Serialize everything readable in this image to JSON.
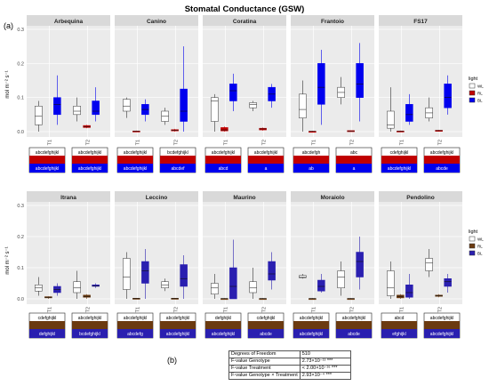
{
  "title": "Stomatal Conductance (GSW)",
  "panel_a_label": "(a)",
  "panel_b_label": "(b)",
  "ylabel": "mol m⁻² s⁻¹",
  "legend": {
    "title": "light",
    "entries": [
      "WL",
      "RL",
      "BL"
    ]
  },
  "colors": {
    "WL": "#ffffff",
    "RL": "#c00000",
    "BL": "#0000ee",
    "panel_bg": "#ebebeb",
    "strip_bg": "#d9d9d9"
  },
  "stats_table": [
    {
      "label": "Degrees of Freedom",
      "value": "510"
    },
    {
      "label": "F-value Genotype",
      "value": "2.73×10⁻¹³ ***"
    },
    {
      "label": "F-value Treatment",
      "value": "< 2.00×10⁻¹⁶ ***"
    },
    {
      "label": "F-value Genotype × Treatment",
      "value": "2.93×10⁻⁴ ***"
    }
  ],
  "chart_data": {
    "type": "box",
    "ylim": [
      0,
      0.3
    ],
    "yticks": [
      0.0,
      0.1,
      0.2,
      0.3
    ],
    "x_categories": [
      "T1",
      "T2"
    ],
    "grid": true,
    "legend_position": "right",
    "panels": [
      {
        "genotype": "Arbequina",
        "boxes": {
          "T1": {
            "WL": [
              0.0,
              0.02,
              0.045,
              0.075,
              0.09
            ],
            "BL": [
              0.02,
              0.05,
              0.08,
              0.1,
              0.165
            ]
          },
          "T2": {
            "WL": [
              0.03,
              0.05,
              0.06,
              0.075,
              0.1
            ],
            "RL": [
              0.01,
              0.012,
              0.015,
              0.018,
              0.02
            ],
            "BL": [
              0.03,
              0.05,
              0.06,
              0.09,
              0.13
            ]
          }
        },
        "letters": {
          "T1": [
            "abcdefghijkl",
            "abcdefghijkl"
          ],
          "T2": [
            "abcdefghijkl",
            "abcdefghijkl"
          ]
        }
      },
      {
        "genotype": "Canino",
        "boxes": {
          "T1": {
            "WL": [
              0.04,
              0.06,
              0.075,
              0.095,
              0.1
            ],
            "RL": [
              0.0,
              0.0,
              0.001,
              0.002,
              0.003
            ],
            "BL": [
              0.03,
              0.05,
              0.065,
              0.08,
              0.095
            ]
          },
          "T2": {
            "WL": [
              0.02,
              0.03,
              0.045,
              0.06,
              0.07
            ],
            "RL": [
              0.0,
              0.002,
              0.004,
              0.006,
              0.008
            ],
            "BL": [
              0.0,
              0.03,
              0.06,
              0.125,
              0.25
            ]
          }
        },
        "letters": {
          "T1": [
            "abcdefghijkl",
            "abcdefghijkl"
          ],
          "T2": [
            "bcdefghijkl",
            "abcdef"
          ]
        }
      },
      {
        "genotype": "Coratina",
        "boxes": {
          "T1": {
            "WL": [
              0.0,
              0.03,
              0.09,
              0.1,
              0.11
            ],
            "RL": [
              0.0,
              0.002,
              0.005,
              0.012,
              0.015
            ],
            "BL": [
              0.06,
              0.09,
              0.12,
              0.14,
              0.17
            ]
          },
          "T2": {
            "WL": [
              0.06,
              0.07,
              0.08,
              0.085,
              0.09
            ],
            "RL": [
              0.003,
              0.005,
              0.008,
              0.01,
              0.012
            ],
            "BL": [
              0.07,
              0.09,
              0.11,
              0.13,
              0.14
            ]
          }
        },
        "letters": {
          "T1": [
            "abcdefghijkl",
            "abcd"
          ],
          "T2": [
            "abcdefghijkl",
            "a"
          ]
        }
      },
      {
        "genotype": "Frantoio",
        "boxes": {
          "T1": {
            "WL": [
              0.0,
              0.04,
              0.065,
              0.11,
              0.15
            ],
            "RL": [
              0.0,
              0.0,
              0.001,
              0.001,
              0.002
            ],
            "BL": [
              0.02,
              0.08,
              0.13,
              0.2,
              0.24
            ]
          },
          "T2": {
            "WL": [
              0.08,
              0.1,
              0.115,
              0.13,
              0.16
            ],
            "RL": [
              0.0,
              0.001,
              0.002,
              0.003,
              0.003
            ],
            "BL": [
              0.03,
              0.1,
              0.14,
              0.2,
              0.26
            ]
          }
        },
        "letters": {
          "T1": [
            "abcdefgh",
            "ab"
          ],
          "T2": [
            "abc",
            "a"
          ]
        }
      },
      {
        "genotype": "FS17",
        "boxes": {
          "T1": {
            "WL": [
              0.0,
              0.01,
              0.02,
              0.06,
              0.13
            ],
            "RL": [
              0.0,
              0.0,
              0.001,
              0.002,
              0.003
            ],
            "BL": [
              0.02,
              0.03,
              0.05,
              0.08,
              0.11
            ]
          },
          "T2": {
            "WL": [
              0.03,
              0.04,
              0.055,
              0.07,
              0.1
            ],
            "RL": [
              0.0,
              0.002,
              0.003,
              0.004,
              0.005
            ],
            "BL": [
              0.05,
              0.07,
              0.1,
              0.14,
              0.165
            ]
          }
        },
        "letters": {
          "T1": [
            "cdefghijkl",
            "abcdefghijkl"
          ],
          "T2": [
            "abcdefghijkl",
            "abcde"
          ]
        }
      },
      {
        "genotype": "Itrana",
        "boxes": {
          "T1": {
            "WL": [
              0.01,
              0.025,
              0.035,
              0.045,
              0.07
            ],
            "RL": [
              0.0,
              0.003,
              0.005,
              0.007,
              0.008
            ],
            "BL": [
              0.01,
              0.02,
              0.03,
              0.04,
              0.05
            ]
          },
          "T2": {
            "WL": [
              0.0,
              0.02,
              0.035,
              0.055,
              0.09
            ],
            "RL": [
              0.0,
              0.005,
              0.008,
              0.012,
              0.015
            ],
            "BL": [
              0.035,
              0.04,
              0.042,
              0.045,
              0.05
            ]
          }
        },
        "letters": {
          "T1": [
            "cdefghijkl",
            "defghijkl"
          ],
          "T2": [
            "abcdefghijkl",
            "bcdefghijkl"
          ]
        }
      },
      {
        "genotype": "Leccino",
        "boxes": {
          "T1": {
            "WL": [
              0.0,
              0.03,
              0.07,
              0.13,
              0.15
            ],
            "RL": [
              0.0,
              0.0,
              0.001,
              0.002,
              0.003
            ],
            "BL": [
              0.0,
              0.05,
              0.09,
              0.12,
              0.16
            ]
          },
          "T2": {
            "WL": [
              0.025,
              0.035,
              0.045,
              0.055,
              0.065
            ],
            "RL": [
              0.0,
              0.0,
              0.001,
              0.002,
              0.003
            ],
            "BL": [
              0.0,
              0.04,
              0.065,
              0.11,
              0.14
            ]
          }
        },
        "letters": {
          "T1": [
            "abcdefghijkl",
            "abcdefg"
          ],
          "T2": [
            "abcdefghijkl",
            "abcdefghijkl"
          ]
        }
      },
      {
        "genotype": "Maurino",
        "boxes": {
          "T1": {
            "WL": [
              0.0,
              0.015,
              0.035,
              0.05,
              0.08
            ],
            "RL": [
              0.0,
              0.0,
              0.001,
              0.001,
              0.002
            ],
            "BL": [
              0.0,
              0.0,
              0.04,
              0.1,
              0.19
            ]
          },
          "T2": {
            "WL": [
              0.0,
              0.02,
              0.035,
              0.055,
              0.1
            ],
            "RL": [
              0.0,
              0.0,
              0.001,
              0.001,
              0.002
            ],
            "BL": [
              0.03,
              0.06,
              0.08,
              0.12,
              0.15
            ]
          }
        },
        "letters": {
          "T1": [
            "defghijkl",
            "abcdefghijkl"
          ],
          "T2": [
            "cdefghijkl",
            "abcde"
          ]
        }
      },
      {
        "genotype": "Moraiolo",
        "boxes": {
          "T1": {
            "WL": [
              0.065,
              0.068,
              0.07,
              0.075,
              0.08
            ],
            "RL": [
              0.0,
              0.0,
              0.001,
              0.001,
              0.002
            ],
            "BL": [
              0.02,
              0.025,
              0.04,
              0.06,
              0.08
            ]
          },
          "T2": {
            "WL": [
              0.01,
              0.035,
              0.07,
              0.09,
              0.12
            ],
            "RL": [
              0.0,
              0.0,
              0.001,
              0.001,
              0.002
            ],
            "BL": [
              0.03,
              0.07,
              0.12,
              0.15,
              0.2
            ]
          }
        },
        "letters": {
          "T1": [
            "abcdefghijkl",
            "abcdefghijkl"
          ],
          "T2": [
            "abcdefghijkl",
            "abcde"
          ]
        }
      },
      {
        "genotype": "Pendolino",
        "boxes": {
          "T1": {
            "WL": [
              0.0,
              0.01,
              0.035,
              0.09,
              0.12
            ],
            "RL": [
              0.0,
              0.003,
              0.008,
              0.012,
              0.015
            ],
            "BL": [
              0.0,
              0.005,
              0.02,
              0.045,
              0.08
            ]
          },
          "T2": {
            "WL": [
              0.07,
              0.09,
              0.115,
              0.13,
              0.16
            ],
            "RL": [
              0.005,
              0.008,
              0.01,
              0.012,
              0.015
            ],
            "BL": [
              0.02,
              0.04,
              0.055,
              0.065,
              0.08
            ]
          }
        },
        "letters": {
          "T1": [
            "abcd",
            "efghijkl"
          ],
          "T2": [
            "abcdefghijkl",
            "abcdefghijkl"
          ]
        }
      }
    ]
  }
}
